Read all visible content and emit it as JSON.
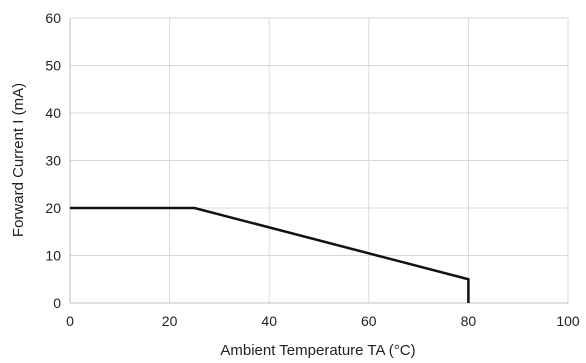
{
  "chart_data": {
    "type": "line",
    "xlabel": "Ambient Temperature  TA (°C)",
    "ylabel": "Forward  Current  I (mA)",
    "xlim": [
      0,
      100
    ],
    "ylim": [
      0,
      60
    ],
    "x_ticks": [
      "0",
      "20",
      "40",
      "60",
      "80",
      "100"
    ],
    "y_ticks": [
      "0",
      "10",
      "20",
      "30",
      "40",
      "50",
      "60"
    ],
    "grid": true,
    "series": [
      {
        "x": [
          0,
          25,
          80,
          80
        ],
        "y": [
          20,
          20,
          5,
          0
        ],
        "color": "#111111"
      }
    ]
  }
}
